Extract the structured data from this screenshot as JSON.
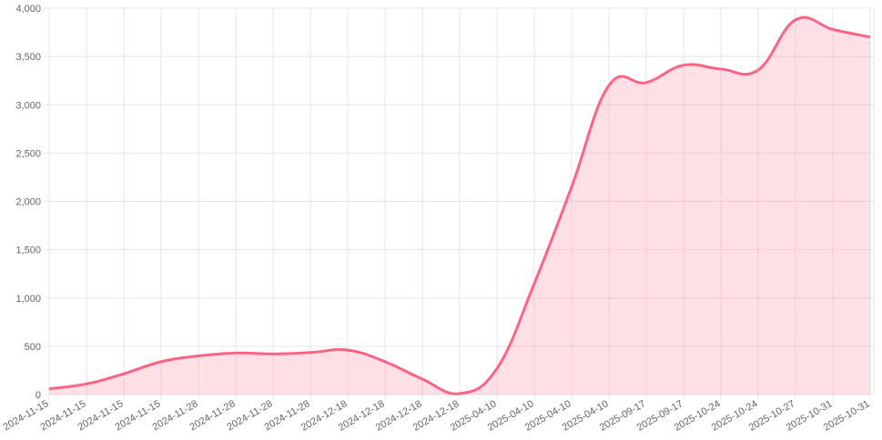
{
  "chart_data": {
    "type": "line",
    "categories": [
      "2024-11-15",
      "2024-11-15",
      "2024-11-15",
      "2024-11-15",
      "2024-11-28",
      "2024-11-28",
      "2024-11-28",
      "2024-11-28",
      "2024-12-18",
      "2024-12-18",
      "2024-12-18",
      "2024-12-18",
      "2025-04-10",
      "2025-04-10",
      "2025-04-10",
      "2025-04-10",
      "2025-09-17",
      "2025-09-17",
      "2025-10-24",
      "2025-10-24",
      "2025-10-27",
      "2025-10-31",
      "2025-10-31"
    ],
    "series": [
      {
        "color": "#ff6384",
        "fill": "rgba(255,99,132,0.2)",
        "values": [
          60,
          110,
          215,
          340,
          400,
          430,
          420,
          435,
          460,
          340,
          160,
          10,
          270,
          1150,
          2150,
          3200,
          3230,
          3410,
          3370,
          3360,
          3880,
          3780,
          3700
        ]
      }
    ],
    "ylim": [
      0,
      4000
    ],
    "yticks": [
      0,
      500,
      {
        "value": 1000,
        "label": "1,000"
      },
      {
        "value": 1500,
        "label": "1,500"
      },
      {
        "value": 2000,
        "label": "2,000"
      },
      {
        "value": 2500,
        "label": "2,500"
      },
      {
        "value": 3000,
        "label": "3,000"
      },
      {
        "value": 3500,
        "label": "3,500"
      },
      {
        "value": 4000,
        "label": "4,000"
      }
    ],
    "grid": true
  }
}
